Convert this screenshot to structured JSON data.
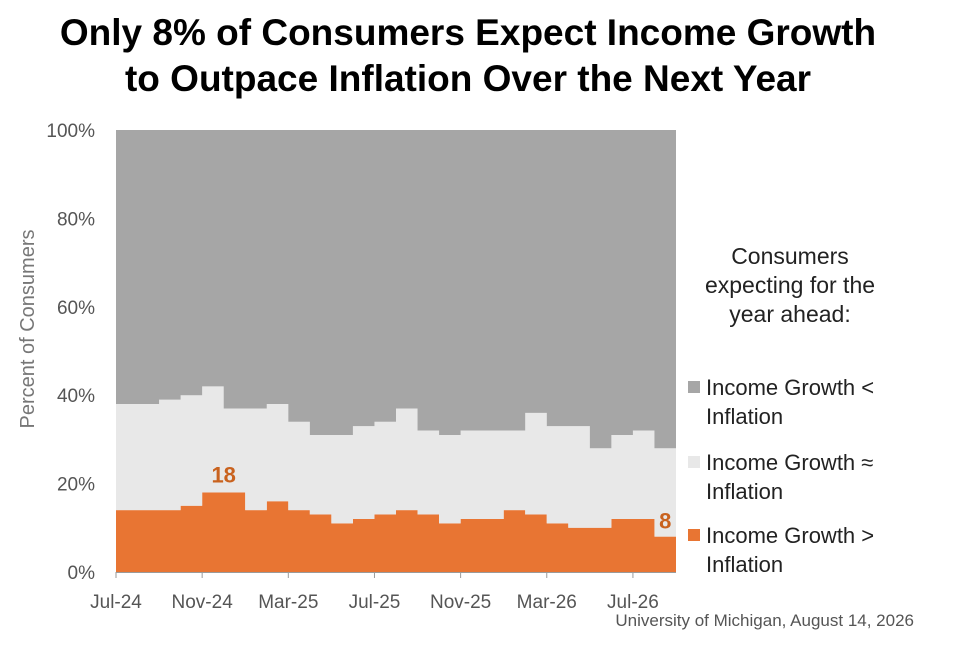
{
  "title_lines": [
    "Only 8% of Consumers Expect Income Growth",
    "to Outpace Inflation Over the Next Year"
  ],
  "legend": {
    "title": "Consumers expecting for the year ahead:",
    "items": [
      {
        "label": "Income Growth < Inflation",
        "color": "#a6a6a6"
      },
      {
        "label": "Income Growth ≈ Inflation",
        "color": "#e8e8e8"
      },
      {
        "label": "Income Growth > Inflation",
        "color": "#e87533"
      }
    ]
  },
  "source": "University of Michigan, August 14, 2026",
  "chart_data": {
    "type": "area",
    "stacked": true,
    "ylabel": "Percent of Consumers",
    "ylim": [
      0,
      100
    ],
    "yticks": [
      "0%",
      "20%",
      "40%",
      "60%",
      "80%",
      "100%"
    ],
    "xtick_labels": [
      "Jul-24",
      "Nov-24",
      "Mar-25",
      "Jul-25",
      "Nov-25",
      "Mar-26",
      "Jul-26"
    ],
    "x": [
      "Jul-24",
      "Aug-24",
      "Sep-24",
      "Oct-24",
      "Nov-24",
      "Dec-24",
      "Jan-25",
      "Feb-25",
      "Mar-25",
      "Apr-25",
      "May-25",
      "Jun-25",
      "Jul-25",
      "Aug-25",
      "Sep-25",
      "Oct-25",
      "Nov-25",
      "Dec-25",
      "Jan-26",
      "Feb-26",
      "Mar-26",
      "Apr-26",
      "May-26",
      "Jun-26",
      "Jul-26",
      "Aug-26"
    ],
    "series": [
      {
        "name": "Income Growth > Inflation",
        "color": "#e87533",
        "values": [
          14,
          14,
          14,
          15,
          18,
          18,
          14,
          16,
          14,
          13,
          11,
          12,
          13,
          14,
          13,
          11,
          12,
          12,
          14,
          13,
          11,
          10,
          10,
          12,
          12,
          8
        ]
      },
      {
        "name": "Income Growth ≈ Inflation",
        "color": "#e8e8e8",
        "values": [
          24,
          24,
          25,
          25,
          24,
          19,
          23,
          22,
          20,
          18,
          20,
          21,
          21,
          23,
          19,
          20,
          20,
          20,
          18,
          23,
          22,
          23,
          18,
          19,
          20,
          20
        ]
      },
      {
        "name": "Income Growth < Inflation",
        "color": "#a6a6a6",
        "values": [
          62,
          62,
          61,
          60,
          58,
          63,
          63,
          62,
          66,
          69,
          69,
          67,
          66,
          63,
          68,
          69,
          68,
          68,
          68,
          64,
          67,
          67,
          72,
          69,
          68,
          72
        ]
      }
    ],
    "annotations": [
      {
        "text": "18",
        "x": "Nov-24",
        "series": "Income Growth > Inflation"
      },
      {
        "text": "8",
        "x": "Aug-26",
        "series": "Income Growth > Inflation"
      }
    ],
    "legend_position": "right"
  }
}
